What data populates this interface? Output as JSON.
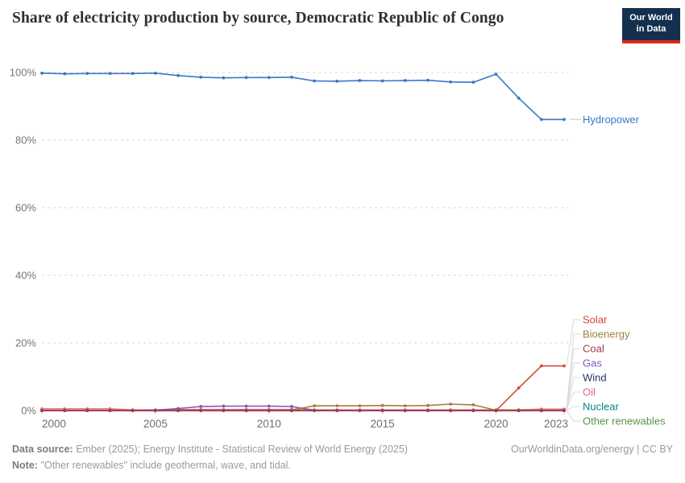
{
  "header": {
    "title": "Share of electricity production by source, Democratic Republic of Congo",
    "logo": {
      "line1": "Our World",
      "line2": "in Data",
      "bg_color": "#15304f",
      "accent_color": "#dc2b1a"
    }
  },
  "chart_data": {
    "type": "line",
    "title": "Share of electricity production by source, Democratic Republic of Congo",
    "x": [
      2000,
      2001,
      2002,
      2003,
      2004,
      2005,
      2006,
      2007,
      2008,
      2009,
      2010,
      2011,
      2012,
      2013,
      2014,
      2015,
      2016,
      2017,
      2018,
      2019,
      2020,
      2021,
      2022,
      2023
    ],
    "xticks": [
      2000,
      2005,
      2010,
      2015,
      2020,
      2023
    ],
    "yticks": [
      0,
      20,
      40,
      60,
      80,
      100
    ],
    "ylim": [
      0,
      100
    ],
    "ytick_suffix": "%",
    "grid": true,
    "legend_position": "right",
    "series": [
      {
        "name": "Hydropower",
        "color": "#3a77c9",
        "values": [
          99.8,
          99.6,
          99.7,
          99.7,
          99.7,
          99.8,
          99.1,
          98.6,
          98.4,
          98.5,
          98.5,
          98.6,
          97.5,
          97.4,
          97.6,
          97.5,
          97.6,
          97.7,
          97.2,
          97.1,
          99.5,
          92.4,
          86.1,
          86.1
        ]
      },
      {
        "name": "Solar",
        "color": "#d0493a",
        "values": [
          0,
          0,
          0,
          0,
          0,
          0,
          0,
          0,
          0,
          0,
          0,
          0,
          0,
          0,
          0,
          0,
          0,
          0,
          0,
          0,
          0,
          6.7,
          13.2,
          13.2
        ]
      },
      {
        "name": "Bioenergy",
        "color": "#a57f3b",
        "values": [
          0,
          0,
          0,
          0,
          0,
          0,
          0,
          0,
          0,
          0,
          0,
          0.2,
          1.4,
          1.4,
          1.4,
          1.5,
          1.4,
          1.5,
          1.9,
          1.7,
          0.1,
          0.1,
          0.1,
          0.1
        ]
      },
      {
        "name": "Coal",
        "color": "#9e3a4c",
        "values": [
          0,
          0,
          0,
          0,
          0,
          0,
          0,
          0,
          0,
          0,
          0,
          0,
          0,
          0,
          0,
          0,
          0,
          0,
          0,
          0,
          0,
          0,
          0,
          0
        ]
      },
      {
        "name": "Gas",
        "color": "#7e56be",
        "values": [
          0,
          0,
          0,
          0,
          0,
          0.1,
          0.6,
          1.2,
          1.3,
          1.3,
          1.3,
          1.2,
          0.1,
          0,
          0,
          0,
          0,
          0,
          0,
          0,
          0,
          0,
          0,
          0
        ]
      },
      {
        "name": "Wind",
        "color": "#1f355f",
        "values": [
          0,
          0,
          0,
          0,
          0,
          0,
          0,
          0,
          0,
          0,
          0,
          0,
          0,
          0,
          0,
          0,
          0,
          0,
          0,
          0,
          0,
          0,
          0,
          0
        ]
      },
      {
        "name": "Oil",
        "color": "#e0687c",
        "values": [
          0.5,
          0.5,
          0.5,
          0.5,
          0.2,
          0.2,
          0.3,
          0.3,
          0.3,
          0.3,
          0.3,
          0.3,
          0.2,
          0.2,
          0.2,
          0.2,
          0.2,
          0.2,
          0.2,
          0.2,
          0.2,
          0.2,
          0.4,
          0.4
        ]
      },
      {
        "name": "Nuclear",
        "color": "#00847e",
        "values": [
          0,
          0,
          0,
          0,
          0,
          0,
          0,
          0,
          0,
          0,
          0,
          0,
          0,
          0,
          0,
          0,
          0,
          0,
          0,
          0,
          0,
          0,
          0,
          0
        ]
      },
      {
        "name": "Other renewables",
        "color": "#5b9448",
        "values": [
          0,
          0,
          0,
          0,
          0,
          0,
          0,
          0,
          0,
          0,
          0,
          0,
          0,
          0,
          0,
          0,
          0,
          0,
          0,
          0,
          0,
          0,
          0,
          0
        ]
      }
    ]
  },
  "footer": {
    "data_source_label": "Data source:",
    "data_source_text": "Ember (2025); Energy Institute - Statistical Review of World Energy (2025)",
    "right_text": "OurWorldinData.org/energy | CC BY",
    "note_label": "Note:",
    "note_text": "\"Other renewables\" include geothermal, wave, and tidal."
  }
}
